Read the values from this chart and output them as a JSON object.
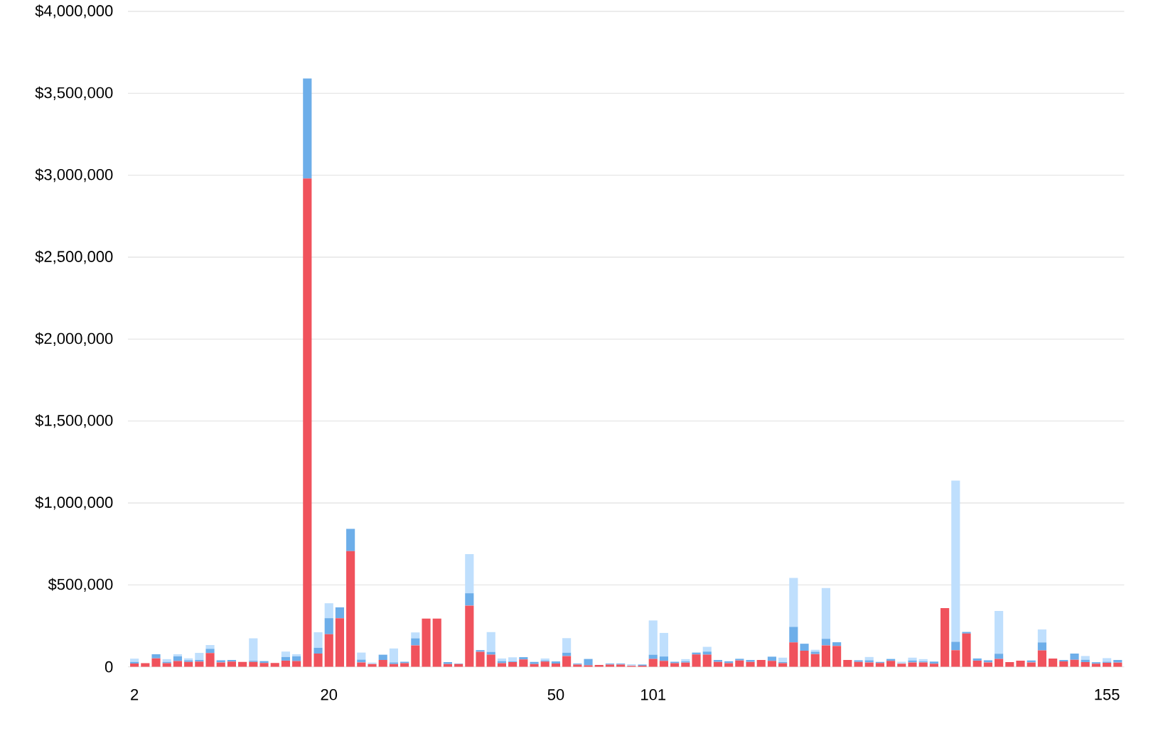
{
  "chart_data": {
    "type": "bar",
    "stacked": true,
    "grid": "y",
    "categories": [
      "2",
      null,
      null,
      null,
      null,
      null,
      null,
      null,
      null,
      null,
      null,
      null,
      null,
      null,
      null,
      null,
      null,
      null,
      "20",
      null,
      null,
      null,
      null,
      null,
      null,
      null,
      null,
      null,
      null,
      null,
      null,
      null,
      null,
      null,
      null,
      null,
      null,
      null,
      null,
      "50",
      null,
      null,
      null,
      null,
      null,
      null,
      null,
      null,
      "101",
      null,
      null,
      null,
      null,
      null,
      null,
      null,
      null,
      null,
      null,
      null,
      null,
      null,
      null,
      null,
      null,
      null,
      null,
      null,
      null,
      null,
      null,
      null,
      null,
      null,
      null,
      null,
      null,
      null,
      null,
      null,
      null,
      null,
      null,
      null,
      null,
      null,
      null,
      null,
      null,
      null,
      "155",
      null
    ],
    "ylim": [
      0,
      4000000
    ],
    "yticks": [
      {
        "value": 0,
        "label": "0"
      },
      {
        "value": 500000,
        "label": "$500,000"
      },
      {
        "value": 1000000,
        "label": "$1,000,000"
      },
      {
        "value": 1500000,
        "label": "$1,500,000"
      },
      {
        "value": 2000000,
        "label": "$2,000,000"
      },
      {
        "value": 2500000,
        "label": "$2,500,000"
      },
      {
        "value": 3000000,
        "label": "$3,000,000"
      },
      {
        "value": 3500000,
        "label": "$3,500,000"
      },
      {
        "value": 4000000,
        "label": "$4,000,000"
      }
    ],
    "series": [
      {
        "color": "#f0525c",
        "values": [
          20000,
          22000,
          52000,
          22000,
          35000,
          30000,
          32000,
          84000,
          27000,
          32000,
          30000,
          30000,
          23000,
          23000,
          38000,
          35000,
          2980000,
          81000,
          199000,
          297000,
          706000,
          27000,
          17000,
          42000,
          17000,
          22000,
          131000,
          294000,
          294000,
          17000,
          17000,
          374000,
          92000,
          74000,
          22000,
          29000,
          45000,
          17000,
          32000,
          20000,
          66000,
          14000,
          9000,
          12000,
          14000,
          14000,
          6000,
          7000,
          48000,
          36000,
          22000,
          26000,
          75000,
          74000,
          30000,
          22000,
          39000,
          30000,
          42000,
          36000,
          22000,
          149000,
          98000,
          78000,
          131000,
          128000,
          42000,
          30000,
          27000,
          23000,
          36000,
          19000,
          27000,
          27000,
          19000,
          358000,
          102000,
          203000,
          38000,
          27000,
          48000,
          29000,
          38000,
          27000,
          100000,
          51000,
          33000,
          43000,
          29000,
          19000,
          25000,
          26000
        ]
      },
      {
        "color": "#6daee9",
        "values": [
          10000,
          0,
          25000,
          8000,
          29000,
          10000,
          10000,
          26000,
          13000,
          10000,
          0,
          7000,
          12000,
          0,
          22000,
          29000,
          610000,
          35000,
          98000,
          66000,
          136000,
          17000,
          0,
          32000,
          10000,
          9000,
          43000,
          0,
          0,
          12000,
          3000,
          75000,
          10000,
          17000,
          13000,
          4000,
          14000,
          13000,
          6000,
          13000,
          20000,
          6000,
          39000,
          0,
          6000,
          6000,
          0,
          7000,
          26000,
          27000,
          9000,
          7000,
          12000,
          19000,
          12000,
          12000,
          10000,
          12000,
          0,
          26000,
          7000,
          95000,
          43000,
          14000,
          40000,
          22000,
          0,
          10000,
          13000,
          7000,
          12000,
          0,
          12000,
          6000,
          13000,
          0,
          51000,
          10000,
          13000,
          13000,
          32000,
          0,
          0,
          12000,
          49000,
          0,
          9000,
          38000,
          14000,
          9000,
          6000,
          16000
        ]
      },
      {
        "color": "#bfdffd",
        "values": [
          20000,
          0,
          0,
          17000,
          13000,
          12000,
          43000,
          23000,
          0,
          0,
          0,
          137000,
          0,
          0,
          33000,
          13000,
          0,
          95000,
          91000,
          0,
          0,
          43000,
          9000,
          0,
          85000,
          0,
          36000,
          0,
          0,
          0,
          0,
          239000,
          0,
          121000,
          16000,
          25000,
          0,
          0,
          13000,
          0,
          89000,
          0,
          0,
          null,
          0,
          0,
          10000,
          0,
          209000,
          144000,
          0,
          14000,
          0,
          29000,
          0,
          0,
          0,
          0,
          0,
          0,
          27000,
          299000,
          0,
          12000,
          310000,
          0,
          0,
          0,
          20000,
          0,
          0,
          12000,
          17000,
          14000,
          0,
          0,
          984000,
          0,
          0,
          0,
          261000,
          0,
          0,
          0,
          79000,
          0,
          0,
          0,
          23000,
          0,
          22000,
          0
        ]
      }
    ]
  }
}
